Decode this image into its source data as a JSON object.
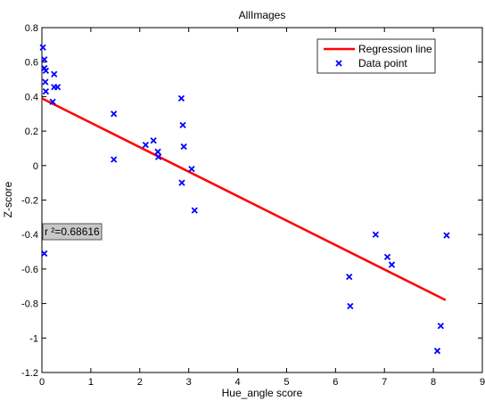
{
  "chart_data": {
    "type": "scatter",
    "title": "AllImages",
    "xlabel": "Hue_angle score",
    "ylabel": "Z-score",
    "xlim": [
      0,
      9
    ],
    "ylim": [
      -1.2,
      0.8
    ],
    "xticks": [
      "0",
      "1",
      "2",
      "3",
      "4",
      "5",
      "6",
      "7",
      "8",
      "9"
    ],
    "yticks": [
      "-1.2",
      "-1",
      "-0.8",
      "-0.6",
      "-0.4",
      "-0.2",
      "0",
      "0.2",
      "0.4",
      "0.6",
      "0.8"
    ],
    "grid": false,
    "legend_position": "top-right",
    "series": [
      {
        "name": "Regression line",
        "kind": "line",
        "color": "#ff0000",
        "points": [
          [
            0,
            0.39
          ],
          [
            8.25,
            -0.78
          ]
        ]
      },
      {
        "name": "Data point",
        "kind": "scatter",
        "marker": "x",
        "color": "#0000ff",
        "points": [
          [
            0.02,
            0.685
          ],
          [
            0.05,
            0.615
          ],
          [
            0.05,
            0.565
          ],
          [
            0.08,
            0.55
          ],
          [
            0.07,
            0.485
          ],
          [
            0.08,
            0.43
          ],
          [
            0.25,
            0.53
          ],
          [
            0.25,
            0.455
          ],
          [
            0.32,
            0.455
          ],
          [
            0.22,
            0.37
          ],
          [
            0.05,
            -0.51
          ],
          [
            1.47,
            0.3
          ],
          [
            1.47,
            0.035
          ],
          [
            2.12,
            0.12
          ],
          [
            2.28,
            0.145
          ],
          [
            2.37,
            0.08
          ],
          [
            2.38,
            0.05
          ],
          [
            2.85,
            0.39
          ],
          [
            2.88,
            0.235
          ],
          [
            2.9,
            0.11
          ],
          [
            2.86,
            -0.1
          ],
          [
            3.06,
            -0.02
          ],
          [
            3.12,
            -0.26
          ],
          [
            6.28,
            -0.645
          ],
          [
            6.3,
            -0.815
          ],
          [
            6.82,
            -0.4
          ],
          [
            7.06,
            -0.53
          ],
          [
            7.15,
            -0.575
          ],
          [
            8.27,
            -0.405
          ],
          [
            8.15,
            -0.93
          ],
          [
            8.08,
            -1.075
          ]
        ]
      }
    ],
    "annotation": "r ²=0.68616"
  }
}
